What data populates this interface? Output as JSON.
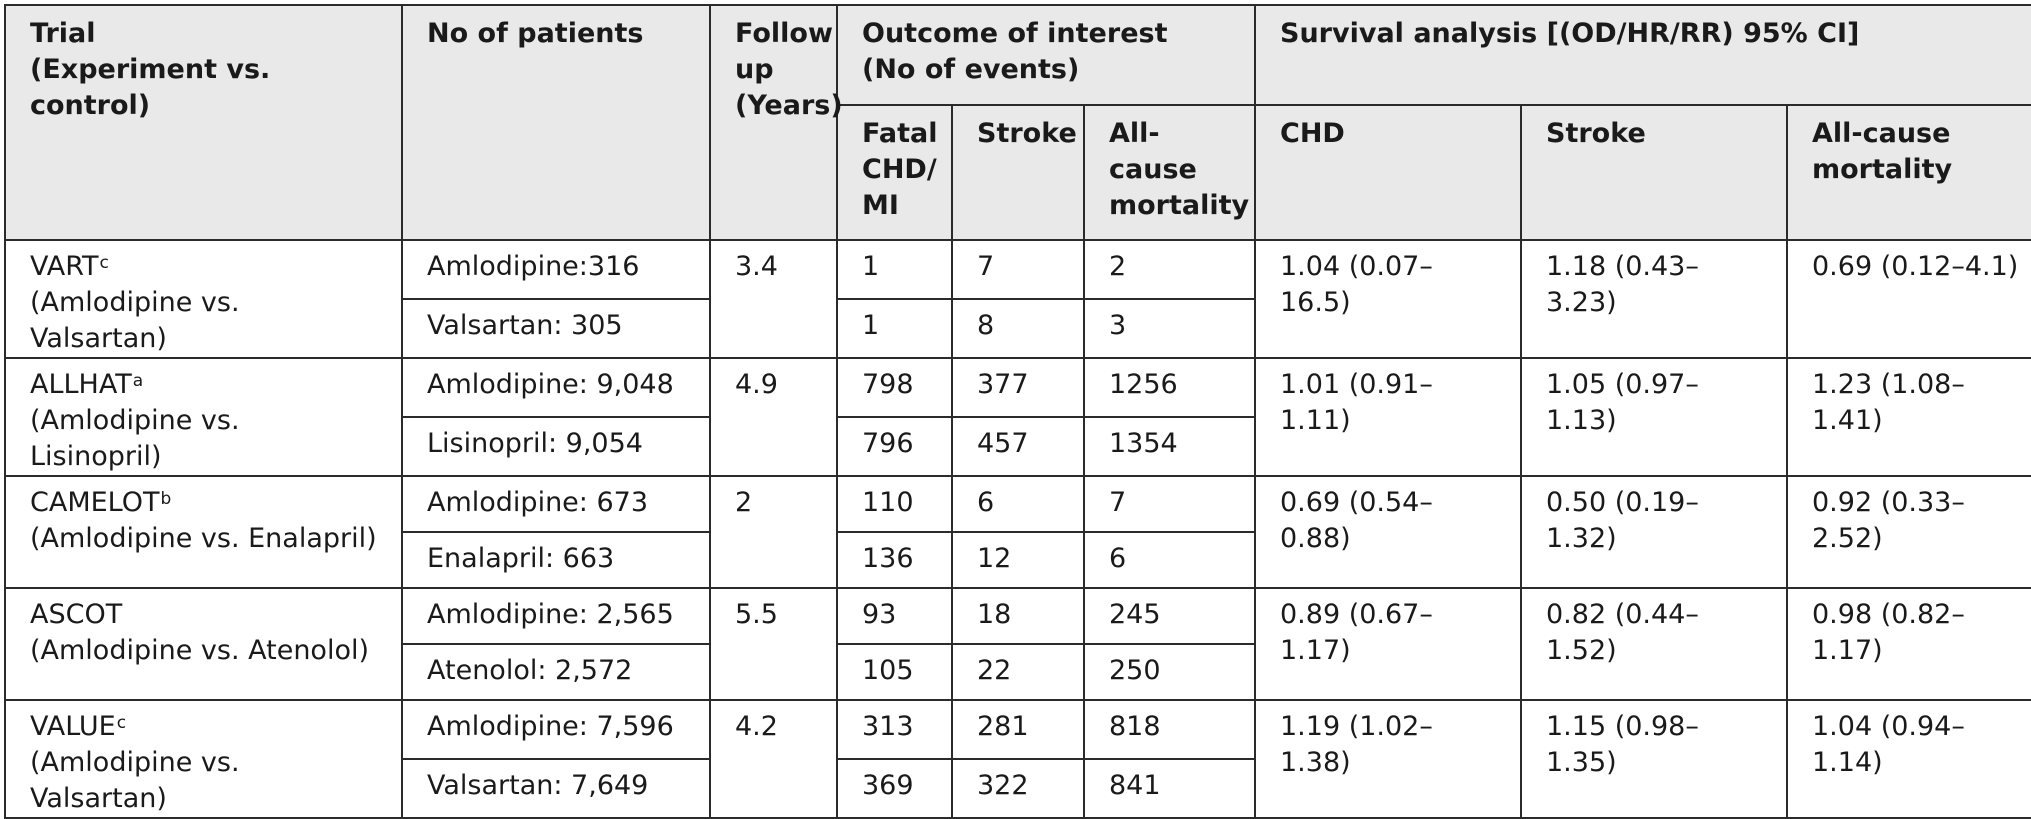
{
  "header": {
    "trial": "Trial",
    "trial_sub": "(Experiment vs. control)",
    "patients": "No of patients",
    "followup": "Follow up (Years)",
    "outcome": "Outcome of interest (No of events)",
    "survival": "Survival analysis [(OD/HR/RR) 95% CI]",
    "fatal_chd": "Fatal CHD/ MI",
    "stroke": "Stroke",
    "all_cause": "All-cause mortality",
    "chd": "CHD",
    "surv_stroke": "Stroke",
    "surv_all_cause": "All-cause mortality"
  },
  "rows": [
    {
      "trial": "VART",
      "sup": "c",
      "comparison": "(Amlodipine vs. Valsartan)",
      "patients_a": "Amlodipine:316",
      "patients_b": "Valsartan: 305",
      "followup": "3.4",
      "fatal_a": "1",
      "stroke_a": "7",
      "acm_a": "2",
      "fatal_b": "1",
      "stroke_b": "8",
      "acm_b": "3",
      "chd": "1.04 (0.07–16.5)",
      "surv_stroke": "1.18 (0.43–3.23)",
      "surv_acm": "0.69 (0.12–4.1)"
    },
    {
      "trial": "ALLHAT",
      "sup": "a",
      "comparison": "(Amlodipine vs. Lisinopril)",
      "patients_a": "Amlodipine: 9,048",
      "patients_b": "Lisinopril: 9,054",
      "followup": "4.9",
      "fatal_a": "798",
      "stroke_a": "377",
      "acm_a": "1256",
      "fatal_b": "796",
      "stroke_b": "457",
      "acm_b": "1354",
      "chd": "1.01 (0.91–1.11)",
      "surv_stroke": "1.05 (0.97–1.13)",
      "surv_acm": "1.23 (1.08–1.41)"
    },
    {
      "trial": "CAMELOT",
      "sup": "b",
      "comparison": "(Amlodipine vs. Enalapril)",
      "patients_a": "Amlodipine: 673",
      "patients_b": "Enalapril: 663",
      "followup": "2",
      "fatal_a": "110",
      "stroke_a": "6",
      "acm_a": "7",
      "fatal_b": "136",
      "stroke_b": "12",
      "acm_b": "6",
      "chd": "0.69 (0.54–0.88)",
      "surv_stroke": "0.50 (0.19–1.32)",
      "surv_acm": "0.92 (0.33–2.52)"
    },
    {
      "trial": "ASCOT",
      "sup": "",
      "comparison": "(Amlodipine vs. Atenolol)",
      "patients_a": "Amlodipine: 2,565",
      "patients_b": "Atenolol: 2,572",
      "followup": "5.5",
      "fatal_a": "93",
      "stroke_a": "18",
      "acm_a": "245",
      "fatal_b": "105",
      "stroke_b": "22",
      "acm_b": "250",
      "chd": "0.89 (0.67–1.17)",
      "surv_stroke": "0.82 (0.44–1.52)",
      "surv_acm": "0.98 (0.82–1.17)"
    },
    {
      "trial": "VALUE",
      "sup": "c",
      "comparison": "(Amlodipine vs. Valsartan)",
      "patients_a": "Amlodipine: 7,596",
      "patients_b": "Valsartan: 7,649",
      "followup": "4.2",
      "fatal_a": "313",
      "stroke_a": "281",
      "acm_a": "818",
      "fatal_b": "369",
      "stroke_b": "322",
      "acm_b": "841",
      "chd": "1.19 (1.02–1.38)",
      "surv_stroke": "1.15 (0.98–1.35)",
      "surv_acm": "1.04 (0.94–1.14)"
    }
  ]
}
